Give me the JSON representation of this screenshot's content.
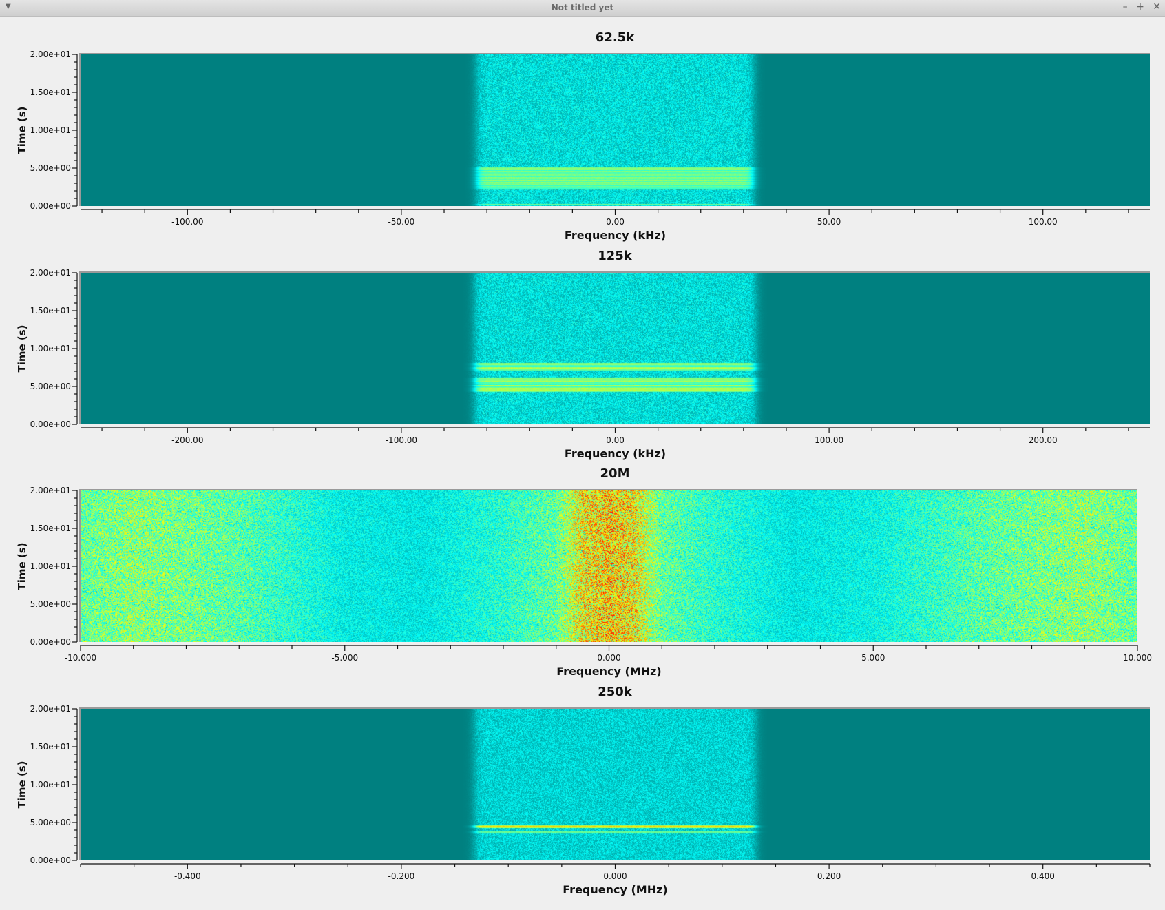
{
  "window": {
    "title": "Not titled yet",
    "menu_icon": "triangle-down-icon",
    "controls": [
      "minimize-icon",
      "maximize-icon",
      "close-icon"
    ],
    "control_glyphs": [
      "–",
      "+",
      "✕"
    ]
  },
  "chart_data": [
    {
      "type": "heatmap",
      "title": "62.5k",
      "xlabel": "Frequency (kHz)",
      "ylabel": "Time (s)",
      "xlim": [
        -125,
        125
      ],
      "ylim": [
        0,
        20
      ],
      "xticks": [
        -100,
        -50,
        0,
        50,
        100
      ],
      "xtick_labels": [
        "-100.00",
        "-50.00",
        "0.00",
        "50.00",
        "100.00"
      ],
      "x_minor_step": 10,
      "yticks": [
        0,
        5,
        10,
        15,
        20
      ],
      "ytick_labels": [
        "0.00e+00",
        "5.00e+00",
        "1.00e+01",
        "1.50e+01",
        "2.00e+01"
      ],
      "colormap": [
        "#008080",
        "#00b4b4",
        "#00ffff",
        "#80ff80",
        "#ffff00",
        "#ff8000",
        "#ff0000"
      ],
      "band": {
        "center": 0,
        "width": 65,
        "noise_level": 0.27
      },
      "bursts": [
        {
          "t_start": 2.2,
          "t_end": 5.1,
          "level": 0.5
        },
        {
          "t_start": 0.1,
          "t_end": 0.3,
          "level": 0.48
        }
      ]
    },
    {
      "type": "heatmap",
      "title": "125k",
      "xlabel": "Frequency (kHz)",
      "ylabel": "Time (s)",
      "xlim": [
        -250,
        250
      ],
      "ylim": [
        0,
        20
      ],
      "xticks": [
        -200,
        -100,
        0,
        100,
        200
      ],
      "xtick_labels": [
        "-200.00",
        "-100.00",
        "0.00",
        "100.00",
        "200.00"
      ],
      "x_minor_step": 20,
      "yticks": [
        0,
        5,
        10,
        15,
        20
      ],
      "ytick_labels": [
        "0.00e+00",
        "5.00e+00",
        "1.00e+01",
        "1.50e+01",
        "2.00e+01"
      ],
      "colormap": [
        "#008080",
        "#00b4b4",
        "#00ffff",
        "#80ff80",
        "#ffff00",
        "#ff8000",
        "#ff0000"
      ],
      "band": {
        "center": 0,
        "width": 132,
        "noise_level": 0.27
      },
      "bursts": [
        {
          "t_start": 7.1,
          "t_end": 8.1,
          "level": 0.5
        },
        {
          "t_start": 4.3,
          "t_end": 6.2,
          "level": 0.5
        }
      ]
    },
    {
      "type": "heatmap",
      "title": "20M",
      "xlabel": "Frequency (MHz)",
      "ylabel": "Time (s)",
      "xlim": [
        -10,
        10
      ],
      "ylim": [
        0,
        20
      ],
      "xticks": [
        -10,
        -5,
        0,
        5,
        10
      ],
      "xtick_labels": [
        "-10.000",
        "-5.000",
        "0.000",
        "5.000",
        "10.000"
      ],
      "x_minor_step": 1,
      "yticks": [
        0,
        5,
        10,
        15,
        20
      ],
      "ytick_labels": [
        "0.00e+00",
        "5.00e+00",
        "1.00e+01",
        "1.50e+01",
        "2.00e+01"
      ],
      "colormap": [
        "#008080",
        "#00b4b4",
        "#00ffff",
        "#80ff80",
        "#ffff00",
        "#ff8000",
        "#ff0000"
      ],
      "spectrum_profile": {
        "freq_MHz": [
          -10,
          -9,
          -7,
          -5,
          -3.5,
          -2,
          -1,
          -0.5,
          0,
          0.5,
          1,
          2,
          3.5,
          5,
          7,
          9,
          10
        ],
        "level": [
          0.5,
          0.56,
          0.48,
          0.32,
          0.3,
          0.4,
          0.5,
          0.72,
          0.78,
          0.72,
          0.5,
          0.4,
          0.3,
          0.34,
          0.48,
          0.56,
          0.5
        ]
      }
    },
    {
      "type": "heatmap",
      "title": "250k",
      "xlabel": "Frequency (MHz)",
      "ylabel": "Time (s)",
      "xlim": [
        -0.5,
        0.5
      ],
      "ylim": [
        0,
        20
      ],
      "xticks": [
        -0.4,
        -0.2,
        0,
        0.2,
        0.4
      ],
      "xtick_labels": [
        "-0.400",
        "-0.200",
        "0.000",
        "0.200",
        "0.400"
      ],
      "x_minor_step": 0.05,
      "yticks": [
        0,
        5,
        10,
        15,
        20
      ],
      "ytick_labels": [
        "0.00e+00",
        "5.00e+00",
        "1.00e+01",
        "1.50e+01",
        "2.00e+01"
      ],
      "colormap": [
        "#008080",
        "#00b4b4",
        "#00ffff",
        "#80ff80",
        "#ffff00",
        "#ff8000",
        "#ff0000"
      ],
      "band": {
        "center": 0,
        "width": 0.264,
        "noise_level": 0.25
      },
      "bursts": [
        {
          "t_start": 4.3,
          "t_end": 4.6,
          "level": 0.62
        },
        {
          "t_start": 3.6,
          "t_end": 3.8,
          "level": 0.47
        }
      ]
    }
  ]
}
